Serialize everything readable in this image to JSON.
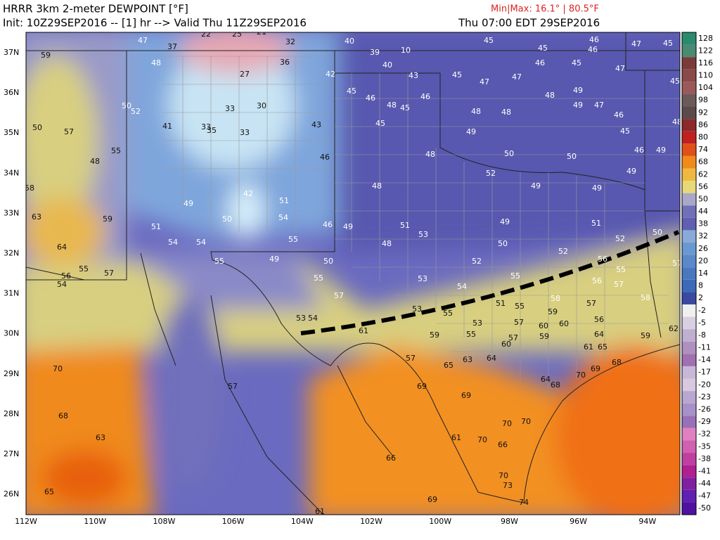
{
  "header": {
    "title": "HRRR 3km 2-meter DEWPOINT [°F]",
    "minmax": "Min|Max: 16.1° | 80.5°F",
    "init": "Init: 10Z29SEP2016 -- [1] hr --> Valid Thu 11Z29SEP2016",
    "valid": "Thu 07:00 EDT 29SEP2016"
  },
  "latitudes": [
    "37N",
    "36N",
    "35N",
    "34N",
    "33N",
    "32N",
    "31N",
    "30N",
    "29N",
    "28N",
    "27N",
    "26N"
  ],
  "longitudes": [
    "112W",
    "110W",
    "108W",
    "106W",
    "104W",
    "102W",
    "100W",
    "98W",
    "96W",
    "94W"
  ],
  "colorbar": [
    128,
    122,
    116,
    110,
    104,
    98,
    92,
    86,
    80,
    74,
    68,
    62,
    56,
    50,
    44,
    38,
    32,
    26,
    20,
    14,
    8,
    2,
    -2,
    -5,
    -8,
    -11,
    -14,
    -17,
    -20,
    -23,
    -26,
    -29,
    -32,
    -35,
    -38,
    -41,
    -44,
    -47,
    -50
  ],
  "stations": [
    47,
    37,
    22,
    25,
    21,
    32,
    40,
    39,
    10,
    40,
    45,
    45,
    46,
    46,
    47,
    45,
    59,
    48,
    36,
    27,
    42,
    43,
    45,
    47,
    47,
    46,
    45,
    47,
    45,
    45,
    46,
    48,
    45,
    46,
    48,
    49,
    50,
    52,
    33,
    30,
    48,
    48,
    49,
    47,
    46,
    48,
    50,
    57,
    41,
    33,
    35,
    33,
    43,
    45,
    49,
    45,
    55,
    48,
    46,
    48,
    50,
    50,
    46,
    49,
    52,
    49,
    58,
    48,
    49,
    49,
    42,
    51,
    49,
    63,
    59,
    50,
    54,
    51,
    46,
    49,
    51,
    49,
    51,
    50,
    64,
    54,
    54,
    55,
    53,
    48,
    50,
    52,
    52,
    55,
    57,
    56,
    54,
    55,
    49,
    50,
    52,
    56,
    55,
    57,
    55,
    53,
    54,
    55,
    56,
    57,
    57,
    58,
    51,
    55,
    59,
    57,
    58,
    53,
    54,
    53,
    55,
    53,
    57,
    60,
    60,
    56,
    61,
    59,
    55,
    57,
    59,
    64,
    59,
    62,
    60,
    61,
    65,
    68,
    57,
    65,
    63,
    64,
    69,
    70,
    70,
    64,
    69,
    68,
    57,
    69,
    68,
    70,
    70,
    63,
    70,
    61,
    66,
    66,
    70,
    73,
    65,
    69,
    74,
    61
  ]
}
